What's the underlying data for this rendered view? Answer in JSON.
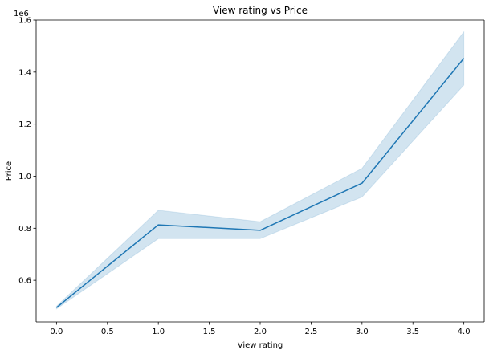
{
  "chart_data": {
    "type": "line",
    "title": "View rating vs Price",
    "xlabel": "View rating",
    "ylabel": "Price",
    "y_offset_label": "1e6",
    "xlim": [
      -0.2,
      4.2
    ],
    "ylim": [
      0.44,
      1.6
    ],
    "x_ticks": [
      0.0,
      0.5,
      1.0,
      1.5,
      2.0,
      2.5,
      3.0,
      3.5,
      4.0
    ],
    "x_tick_labels": [
      "0.0",
      "0.5",
      "1.0",
      "1.5",
      "2.0",
      "2.5",
      "3.0",
      "3.5",
      "4.0"
    ],
    "y_ticks": [
      0.6,
      0.8,
      1.0,
      1.2,
      1.4,
      1.6
    ],
    "y_tick_labels": [
      "0.6",
      "0.8",
      "1.0",
      "1.2",
      "1.4",
      "1.6"
    ],
    "grid": false,
    "series": [
      {
        "x": [
          0,
          1,
          2,
          3,
          4
        ],
        "y": [
          0.495,
          0.813,
          0.792,
          0.973,
          1.453
        ],
        "ci_lower": [
          0.49,
          0.76,
          0.76,
          0.92,
          1.35
        ],
        "ci_upper": [
          0.5,
          0.869,
          0.825,
          1.03,
          1.555
        ],
        "color": "#1f77b4",
        "band_color": "#1f77b4"
      }
    ]
  }
}
